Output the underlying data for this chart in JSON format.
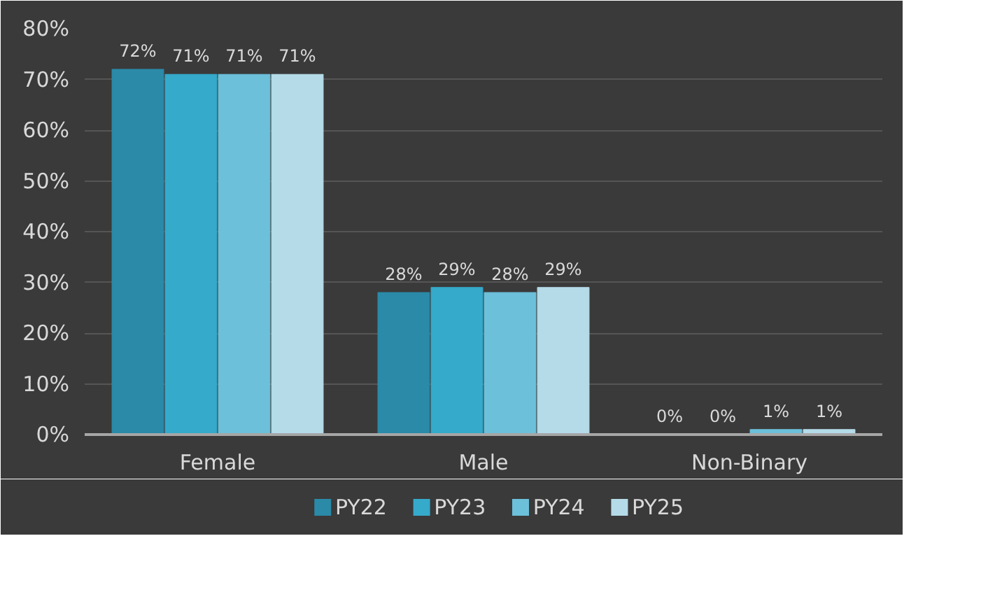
{
  "chart_data": {
    "type": "bar",
    "categories": [
      "Female",
      "Male",
      "Non-Binary"
    ],
    "series": [
      {
        "name": "PY22",
        "color": "#2a8aa8",
        "values": [
          72,
          28,
          0
        ],
        "value_labels": [
          "72%",
          "28%",
          "0%"
        ]
      },
      {
        "name": "PY23",
        "color": "#35aacb",
        "values": [
          71,
          29,
          0
        ],
        "value_labels": [
          "71%",
          "29%",
          "0%"
        ]
      },
      {
        "name": "PY24",
        "color": "#6cc0da",
        "values": [
          71,
          28,
          1
        ],
        "value_labels": [
          "71%",
          "28%",
          "1%"
        ]
      },
      {
        "name": "PY25",
        "color": "#b5dbe8",
        "values": [
          71,
          29,
          1
        ],
        "value_labels": [
          "71%",
          "29%",
          "1%"
        ]
      }
    ],
    "ylim": [
      0,
      80
    ],
    "yticks": [
      {
        "value": 0,
        "label": "0%"
      },
      {
        "value": 10,
        "label": "10%"
      },
      {
        "value": 20,
        "label": "20%"
      },
      {
        "value": 30,
        "label": "30%"
      },
      {
        "value": 40,
        "label": "40%"
      },
      {
        "value": 50,
        "label": "50%"
      },
      {
        "value": 60,
        "label": "60%"
      },
      {
        "value": 70,
        "label": "70%"
      },
      {
        "value": 80,
        "label": "80%"
      }
    ],
    "grid": "y",
    "legend": "bottom"
  }
}
